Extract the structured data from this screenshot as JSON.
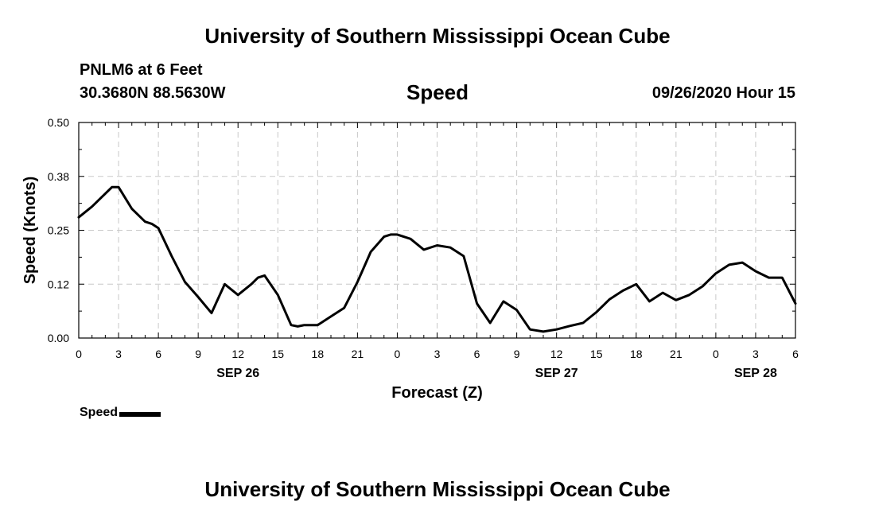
{
  "header": {
    "title": "University of Southern Mississippi Ocean Cube",
    "station": "PNLM6 at 6 Feet",
    "coords": "30.3680N 88.5630W",
    "chart_title": "Speed",
    "datetime": "09/26/2020 Hour 15"
  },
  "footer": {
    "title": "University of Southern Mississippi Ocean Cube"
  },
  "legend": {
    "label": "Speed",
    "color": "#000000"
  },
  "chart_data": {
    "type": "line",
    "title": "Speed",
    "xlabel": "Forecast (Z)",
    "ylabel": "Speed (Knots)",
    "xlim": [
      0,
      54
    ],
    "ylim": [
      0,
      0.5
    ],
    "grid": true,
    "yticks": [
      "0.00",
      "0.12",
      "0.25",
      "0.38",
      "0.50"
    ],
    "xticks": [
      "0",
      "3",
      "6",
      "9",
      "12",
      "15",
      "18",
      "21",
      "0",
      "3",
      "6",
      "9",
      "12",
      "15",
      "18",
      "21",
      "0",
      "3",
      "6"
    ],
    "date_labels": [
      {
        "text": "SEP 26",
        "at": 12
      },
      {
        "text": "SEP 27",
        "at": 36
      },
      {
        "text": "SEP 28",
        "at": 51
      }
    ],
    "series": [
      {
        "name": "Speed",
        "color": "#000000",
        "x": [
          0,
          1,
          2,
          2.5,
          3,
          4,
          5,
          5.5,
          6,
          7,
          8,
          9,
          10,
          11,
          12,
          13,
          13.5,
          14,
          15,
          16,
          16.5,
          17,
          18,
          19,
          20,
          21,
          22,
          23,
          23.5,
          24,
          25,
          26,
          27,
          28,
          29,
          30,
          31,
          32,
          33,
          34,
          35,
          36,
          37,
          38,
          39,
          40,
          41,
          42,
          43,
          44,
          45,
          46,
          47,
          48,
          49,
          50,
          51,
          52,
          53,
          54
        ],
        "y": [
          0.28,
          0.305,
          0.335,
          0.35,
          0.35,
          0.3,
          0.27,
          0.265,
          0.255,
          0.19,
          0.13,
          0.095,
          0.058,
          0.125,
          0.1,
          0.125,
          0.14,
          0.145,
          0.1,
          0.03,
          0.027,
          0.03,
          0.03,
          0.05,
          0.07,
          0.13,
          0.2,
          0.235,
          0.24,
          0.24,
          0.23,
          0.205,
          0.215,
          0.21,
          0.19,
          0.08,
          0.035,
          0.085,
          0.065,
          0.02,
          0.015,
          0.02,
          0.028,
          0.035,
          0.06,
          0.09,
          0.11,
          0.125,
          0.085,
          0.105,
          0.088,
          0.1,
          0.12,
          0.15,
          0.17,
          0.175,
          0.155,
          0.14,
          0.14,
          0.08
        ]
      }
    ]
  }
}
